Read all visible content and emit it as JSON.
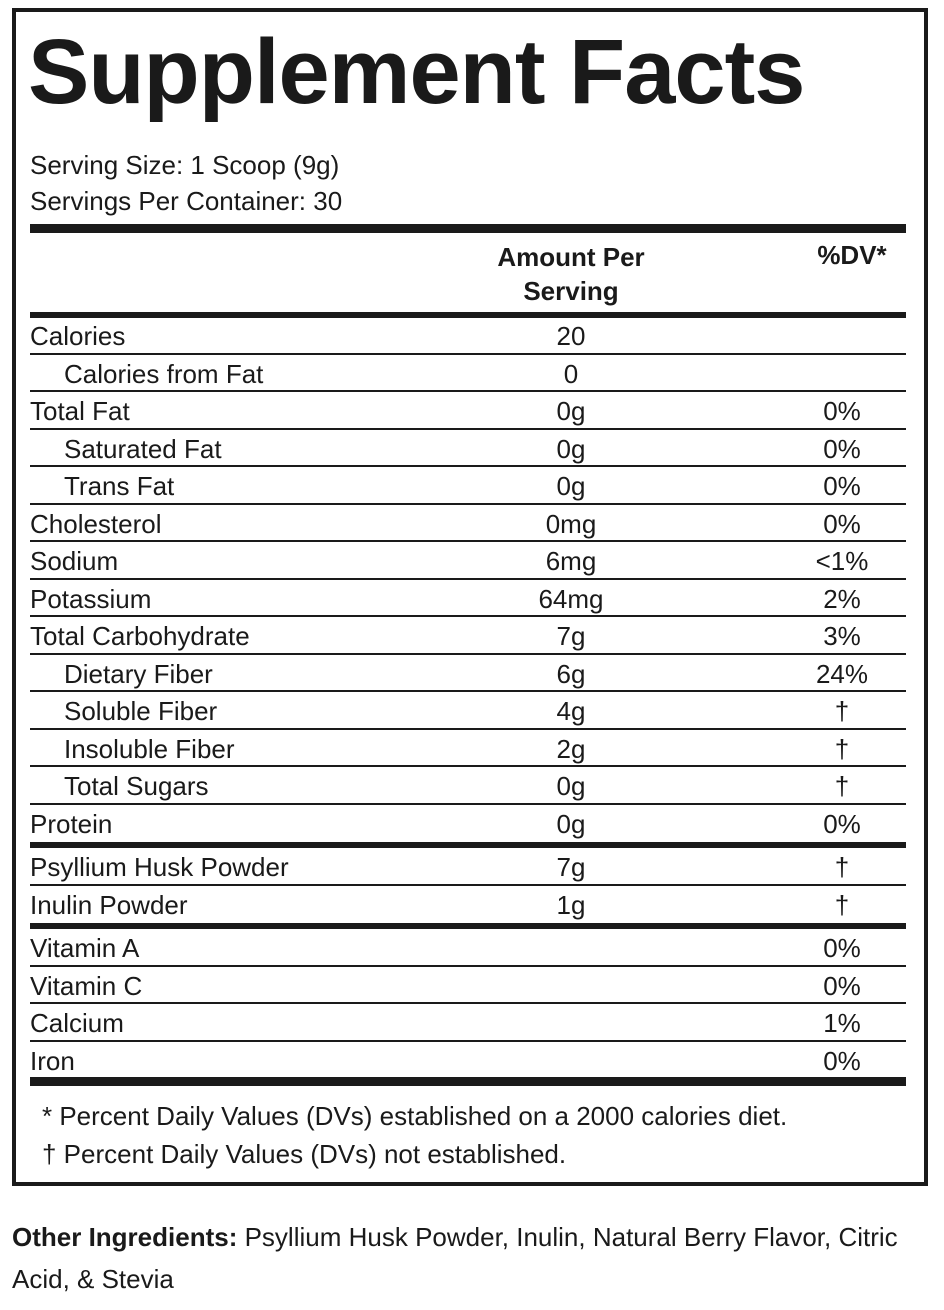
{
  "label": {
    "title": "Supplement Facts",
    "serving_size": "Serving Size: 1 Scoop (9g)",
    "servings_per_container": "Servings Per Container: 30",
    "header": {
      "amount_line1": "Amount Per",
      "amount_line2": "Serving",
      "dv": "%DV*"
    },
    "group1": [
      {
        "name": "Calories",
        "amount": "20",
        "dv": ""
      },
      {
        "name": "Calories from Fat",
        "amount": "0",
        "dv": ""
      },
      {
        "name": "Total Fat",
        "amount": "0g",
        "dv": "0%"
      },
      {
        "name": "Saturated Fat",
        "amount": "0g",
        "dv": "0%"
      },
      {
        "name": "Trans Fat",
        "amount": "0g",
        "dv": "0%"
      },
      {
        "name": "Cholesterol",
        "amount": "0mg",
        "dv": "0%"
      },
      {
        "name": "Sodium",
        "amount": "6mg",
        "dv": "<1%"
      },
      {
        "name": "Potassium",
        "amount": "64mg",
        "dv": "2%"
      },
      {
        "name": "Total Carbohydrate",
        "amount": "7g",
        "dv": "3%"
      },
      {
        "name": "Dietary Fiber",
        "amount": "6g",
        "dv": "24%"
      },
      {
        "name": "Soluble Fiber",
        "amount": "4g",
        "dv": "†"
      },
      {
        "name": "Insoluble Fiber",
        "amount": "2g",
        "dv": "†"
      },
      {
        "name": "Total Sugars",
        "amount": "0g",
        "dv": "†"
      },
      {
        "name": "Protein",
        "amount": "0g",
        "dv": "0%"
      }
    ],
    "group2": [
      {
        "name": "Psyllium Husk Powder",
        "amount": "7g",
        "dv": "†"
      },
      {
        "name": "Inulin Powder",
        "amount": "1g",
        "dv": "†"
      }
    ],
    "group3": [
      {
        "name": "Vitamin A",
        "amount": "",
        "dv": "0%"
      },
      {
        "name": "Vitamin C",
        "amount": "",
        "dv": "0%"
      },
      {
        "name": "Calcium",
        "amount": "",
        "dv": "1%"
      },
      {
        "name": "Iron",
        "amount": "",
        "dv": "0%"
      }
    ],
    "footnote_dv": "* Percent Daily Values (DVs) established on a 2000 calories diet.",
    "footnote_dagger": "† Percent Daily Values (DVs) not established."
  },
  "other_ingredients": {
    "label": "Other Ingredients:",
    "text": "Psyllium Husk Powder, Inulin, Natural Berry Flavor, Citric Acid, & Stevia"
  }
}
